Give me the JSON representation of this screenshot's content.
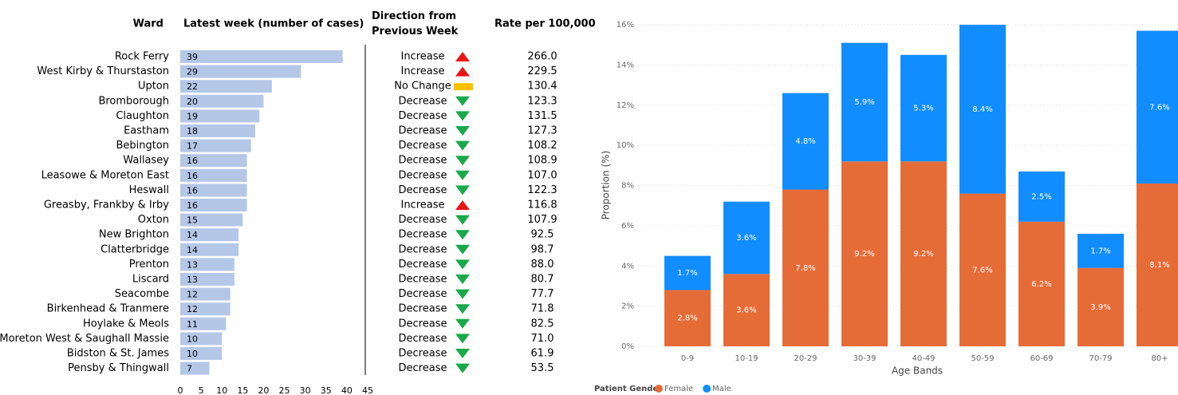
{
  "chart_data": [
    {
      "type": "hbar",
      "headers": [
        "Ward",
        "Latest week (number of cases)",
        "Direction from Previous Week",
        "Rate per 100,000"
      ],
      "categories": [
        "Rock Ferry",
        "West Kirby & Thurstaston",
        "Upton",
        "Bromborough",
        "Claughton",
        "Eastham",
        "Bebington",
        "Wallasey",
        "Leasowe & Moreton East",
        "Heswall",
        "Greasby, Frankby & Irby",
        "Oxton",
        "New Brighton",
        "Clatterbridge",
        "Prenton",
        "Liscard",
        "Seacombe",
        "Birkenhead & Tranmere",
        "Hoylake & Meols",
        "Moreton West & Saughall Massie",
        "Bidston & St. James",
        "Pensby & Thingwall"
      ],
      "values": [
        39,
        29,
        22,
        20,
        19,
        18,
        17,
        16,
        16,
        16,
        16,
        15,
        14,
        14,
        13,
        13,
        12,
        12,
        11,
        10,
        10,
        7
      ],
      "direction": [
        "Increase",
        "Increase",
        "No Change",
        "Decrease",
        "Decrease",
        "Decrease",
        "Decrease",
        "Decrease",
        "Decrease",
        "Decrease",
        "Increase",
        "Decrease",
        "Decrease",
        "Decrease",
        "Decrease",
        "Decrease",
        "Decrease",
        "Decrease",
        "Decrease",
        "Decrease",
        "Decrease",
        "Decrease"
      ],
      "rate": [
        "266.0",
        "229.5",
        "130.4",
        "123.3",
        "131.5",
        "127.3",
        "108.2",
        "108.9",
        "107.0",
        "122.3",
        "116.8",
        "107.9",
        "92.5",
        "98.7",
        "88.0",
        "80.7",
        "77.7",
        "71.8",
        "82.5",
        "71.0",
        "61.9",
        "53.5"
      ],
      "icon_colors": {
        "Increase": "#e81416",
        "Decrease": "#19a94a",
        "No Change": "#ffc000"
      },
      "icon_shapes": {
        "Increase": "up",
        "Decrease": "down",
        "No Change": "rect"
      },
      "color": "#b4c7e7",
      "xlim": [
        0,
        45
      ],
      "xticks": [
        0,
        5,
        10,
        15,
        20,
        25,
        30,
        35,
        40,
        45
      ]
    },
    {
      "type": "stacked_bar",
      "xlabel": "Age Bands",
      "ylabel": "Proportion (%)",
      "legend_title": "Patient Gender",
      "categories": [
        "0-9",
        "10-19",
        "20-29",
        "30-39",
        "40-49",
        "50-59",
        "60-69",
        "70-79",
        "80+"
      ],
      "series": [
        {
          "name": "Female",
          "color": "#e66c37",
          "values": [
            2.8,
            3.6,
            7.8,
            9.2,
            9.2,
            7.6,
            6.2,
            3.9,
            8.1
          ],
          "value_labels": [
            "2.8%",
            "3.6%",
            "7.8%",
            "9.2%",
            "9.2%",
            "7.6%",
            "6.2%",
            "3.9%",
            "8.1%"
          ]
        },
        {
          "name": "Male",
          "color": "#118dff",
          "values": [
            1.7,
            3.6,
            4.8,
            5.9,
            5.3,
            8.4,
            2.5,
            1.7,
            7.6
          ],
          "value_labels": [
            "1.7%",
            "3.6%",
            "4.8%",
            "5.9%",
            "5.3%",
            "8.4%",
            "2.5%",
            "1.7%",
            "7.6%"
          ]
        }
      ],
      "ylim": [
        0,
        16
      ],
      "yticks": [
        {
          "value": 0,
          "label": "0%"
        },
        {
          "value": 2,
          "label": "2%"
        },
        {
          "value": 4,
          "label": "4%"
        },
        {
          "value": 6,
          "label": "6%"
        },
        {
          "value": 8,
          "label": "8%"
        },
        {
          "value": 10,
          "label": "10%"
        },
        {
          "value": 12,
          "label": "12%"
        },
        {
          "value": 14,
          "label": "14%"
        },
        {
          "value": 16,
          "label": "16%"
        }
      ],
      "grid": true
    }
  ]
}
